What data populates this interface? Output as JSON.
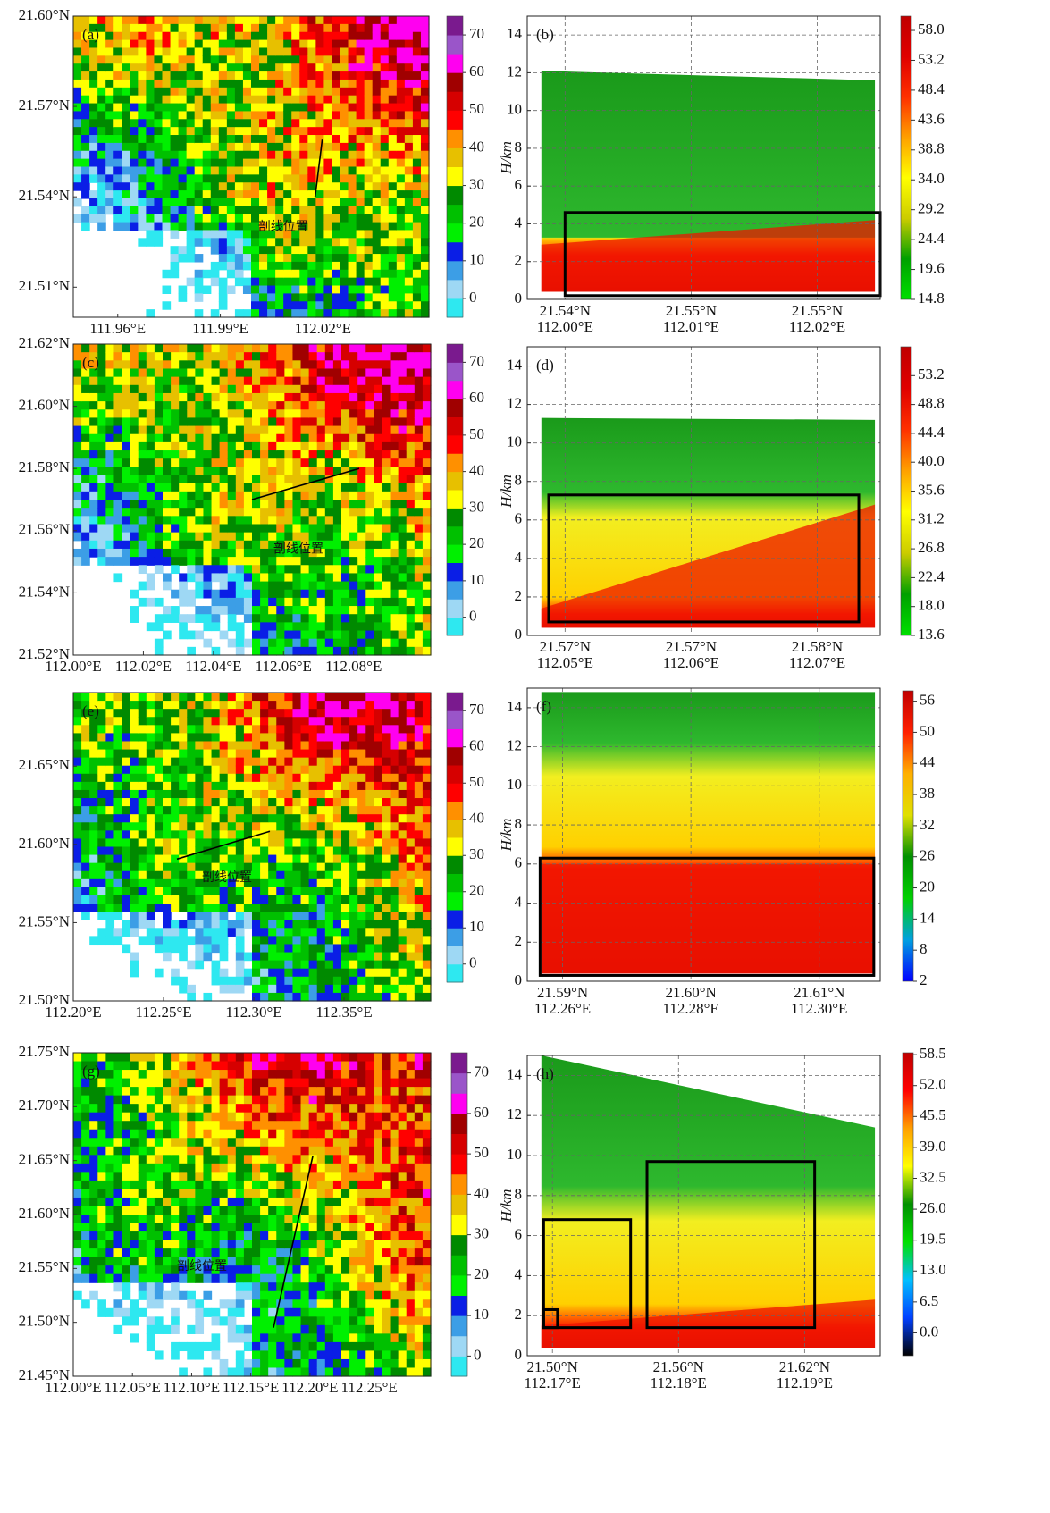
{
  "chart_data": [
    {
      "type": "radar-map",
      "label": "(a)",
      "annotation": "剖线位置",
      "xlim": [
        111.947,
        112.051
      ],
      "ylim": [
        21.5,
        21.6
      ],
      "xticks": [
        {
          "value": 111.96,
          "label": "111.96°E"
        },
        {
          "value": 111.99,
          "label": "111.99°E"
        },
        {
          "value": 112.02,
          "label": "112.02°E"
        }
      ],
      "yticks": [
        {
          "value": 21.51,
          "label": "21.51°N"
        },
        {
          "value": 21.54,
          "label": "21.54°N"
        },
        {
          "value": 21.57,
          "label": "21.57°N"
        },
        {
          "value": 21.6,
          "label": "21.60°N"
        }
      ],
      "colorbar": {
        "lim": [
          -5,
          75
        ],
        "ticks": [
          0,
          10,
          20,
          30,
          40,
          50,
          60,
          70
        ],
        "colors": [
          "#2ee8f0",
          "#9ed8f4",
          "#3c9ee6",
          "#0a1ee6",
          "#00f000",
          "#00c000",
          "#008a00",
          "#ffff00",
          "#e7c000",
          "#ff9000",
          "#ff0000",
          "#d60000",
          "#a00000",
          "#ff00f0",
          "#9a55c9",
          "#7a1a8e"
        ]
      }
    },
    {
      "type": "cross-section",
      "label": "(b)",
      "ylabel": "H/km",
      "xlim": [
        111.997,
        112.025
      ],
      "ylim": [
        0,
        15
      ],
      "grid": true,
      "xticks": [
        {
          "value": 112.0,
          "label": "112.00°E"
        },
        {
          "value": 112.01,
          "label": "112.01°E"
        },
        {
          "value": 112.02,
          "label": "112.02°E"
        }
      ],
      "xtick_lats": [
        "21.54°N",
        "21.55°N",
        "21.55°N"
      ],
      "yticks": [
        0,
        2,
        4,
        6,
        8,
        10,
        12,
        14
      ],
      "colorbar": {
        "lim": [
          14.8,
          60.3
        ],
        "ticks": [
          {
            "value": 14.8,
            "label": "14.8"
          },
          {
            "value": 19.6,
            "label": "19.6"
          },
          {
            "value": 24.4,
            "label": "24.4"
          },
          {
            "value": 29.2,
            "label": "29.2"
          },
          {
            "value": 34,
            "label": "34.0"
          },
          {
            "value": 38.8,
            "label": "38.8"
          },
          {
            "value": 43.6,
            "label": "43.6"
          },
          {
            "value": 48.4,
            "label": "48.4"
          },
          {
            "value": 53.2,
            "label": "53.2"
          },
          {
            "value": 58,
            "label": "58.0"
          }
        ],
        "colors": [
          "#00e000",
          "#00a000",
          "#cccc00",
          "#ffff00",
          "#ffa000",
          "#ff3000",
          "#e00000",
          "#c00000"
        ]
      }
    },
    {
      "type": "radar-map",
      "label": "(c)",
      "annotation": "剖线位置",
      "xlim": [
        112.0,
        112.102
      ],
      "ylim": [
        21.52,
        21.62
      ],
      "xticks": [
        {
          "value": 112.0,
          "label": "112.00°E"
        },
        {
          "value": 112.02,
          "label": "112.02°E"
        },
        {
          "value": 112.04,
          "label": "112.04°E"
        },
        {
          "value": 112.06,
          "label": "112.06°E"
        },
        {
          "value": 112.08,
          "label": "112.08°E"
        }
      ],
      "yticks": [
        {
          "value": 21.52,
          "label": "21.52°N"
        },
        {
          "value": 21.54,
          "label": "21.54°N"
        },
        {
          "value": 21.56,
          "label": "21.56°N"
        },
        {
          "value": 21.58,
          "label": "21.58°N"
        },
        {
          "value": 21.6,
          "label": "21.60°N"
        },
        {
          "value": 21.62,
          "label": "21.62°N"
        }
      ],
      "colorbar": {
        "lim": [
          -5,
          75
        ],
        "ticks": [
          0,
          10,
          20,
          30,
          40,
          50,
          60,
          70
        ],
        "colors": [
          "#2ee8f0",
          "#9ed8f4",
          "#3c9ee6",
          "#0a1ee6",
          "#00f000",
          "#00c000",
          "#008a00",
          "#ffff00",
          "#e7c000",
          "#ff9000",
          "#ff0000",
          "#d60000",
          "#a00000",
          "#ff00f0",
          "#9a55c9",
          "#7a1a8e"
        ]
      }
    },
    {
      "type": "cross-section",
      "label": "(d)",
      "ylabel": "H/km",
      "xlim": [
        112.047,
        112.075
      ],
      "ylim": [
        0,
        15
      ],
      "grid": true,
      "xticks": [
        {
          "value": 112.05,
          "label": "112.05°E"
        },
        {
          "value": 112.06,
          "label": "112.06°E"
        },
        {
          "value": 112.07,
          "label": "112.07°E"
        }
      ],
      "xtick_lats": [
        "21.57°N",
        "21.57°N",
        "21.58°N"
      ],
      "yticks": [
        0,
        2,
        4,
        6,
        8,
        10,
        12,
        14
      ],
      "colorbar": {
        "lim": [
          13.6,
          57.6
        ],
        "ticks": [
          13.6,
          {
            "value": 18,
            "label": "18.0"
          },
          22.4,
          26.8,
          31.2,
          35.6,
          {
            "value": 40,
            "label": "40.0"
          },
          44.4,
          48.8,
          53.2
        ],
        "colors": [
          "#00e000",
          "#00a000",
          "#cccc00",
          "#ffff00",
          "#ffa000",
          "#ff3000",
          "#e00000",
          "#c00000"
        ]
      }
    },
    {
      "type": "radar-map",
      "label": "(e)",
      "annotation": "剖线位置",
      "xlim": [
        112.2,
        112.398
      ],
      "ylim": [
        21.5,
        21.697
      ],
      "xticks": [
        {
          "value": 112.2,
          "label": "112.20°E"
        },
        {
          "value": 112.25,
          "label": "112.25°E"
        },
        {
          "value": 112.3,
          "label": "112.30°E"
        },
        {
          "value": 112.35,
          "label": "112.35°E"
        }
      ],
      "yticks": [
        {
          "value": 21.5,
          "label": "21.50°N"
        },
        {
          "value": 21.55,
          "label": "21.55°N"
        },
        {
          "value": 21.6,
          "label": "21.60°N"
        },
        {
          "value": 21.65,
          "label": "21.65°N"
        }
      ],
      "colorbar": {
        "lim": [
          -5,
          75
        ],
        "ticks": [
          0,
          10,
          20,
          30,
          40,
          50,
          60,
          70
        ],
        "colors": [
          "#2ee8f0",
          "#9ed8f4",
          "#3c9ee6",
          "#0a1ee6",
          "#00f000",
          "#00c000",
          "#008a00",
          "#ffff00",
          "#e7c000",
          "#ff9000",
          "#ff0000",
          "#d60000",
          "#a00000",
          "#ff00f0",
          "#9a55c9",
          "#7a1a8e"
        ]
      }
    },
    {
      "type": "cross-section",
      "label": "(f)",
      "ylabel": "H/km",
      "xlim": [
        112.2545,
        112.3095
      ],
      "ylim": [
        0,
        15
      ],
      "grid": true,
      "xticks": [
        {
          "value": 112.26,
          "label": "112.26°E"
        },
        {
          "value": 112.28,
          "label": "112.28°E"
        },
        {
          "value": 112.3,
          "label": "112.30°E"
        }
      ],
      "xtick_lats": [
        "21.59°N",
        "21.60°N",
        "21.61°N"
      ],
      "yticks": [
        0,
        2,
        4,
        6,
        8,
        10,
        12,
        14
      ],
      "colorbar": {
        "lim": [
          2,
          58
        ],
        "ticks": [
          2,
          8,
          14,
          20,
          26,
          32,
          38,
          44,
          50,
          56
        ],
        "colors": [
          "#0000ff",
          "#00a0e0",
          "#00d000",
          "#009000",
          "#e0e000",
          "#ffb000",
          "#ff2000",
          "#c00000"
        ]
      }
    },
    {
      "type": "radar-map",
      "label": "(g)",
      "annotation": "剖线位置",
      "xlim": [
        112.0,
        112.302
      ],
      "ylim": [
        21.45,
        21.75
      ],
      "xticks": [
        {
          "value": 112.0,
          "label": "112.00°E"
        },
        {
          "value": 112.05,
          "label": "112.05°E"
        },
        {
          "value": 112.1,
          "label": "112.10°E"
        },
        {
          "value": 112.15,
          "label": "112.15°E"
        },
        {
          "value": 112.2,
          "label": "112.20°E"
        },
        {
          "value": 112.25,
          "label": "112.25°E"
        }
      ],
      "yticks": [
        {
          "value": 21.45,
          "label": "21.45°N"
        },
        {
          "value": 21.5,
          "label": "21.50°N"
        },
        {
          "value": 21.55,
          "label": "21.55°N"
        },
        {
          "value": 21.6,
          "label": "21.60°N"
        },
        {
          "value": 21.65,
          "label": "21.65°N"
        },
        {
          "value": 21.7,
          "label": "21.70°N"
        },
        {
          "value": 21.75,
          "label": "21.75°N"
        }
      ],
      "colorbar": {
        "lim": [
          -5,
          75
        ],
        "ticks": [
          0,
          10,
          20,
          30,
          40,
          50,
          60,
          70
        ],
        "colors": [
          "#2ee8f0",
          "#9ed8f4",
          "#3c9ee6",
          "#0a1ee6",
          "#00f000",
          "#00c000",
          "#008a00",
          "#ffff00",
          "#e7c000",
          "#ff9000",
          "#ff0000",
          "#d60000",
          "#a00000",
          "#ff00f0",
          "#9a55c9",
          "#7a1a8e"
        ]
      }
    },
    {
      "type": "cross-section",
      "label": "(h)",
      "ylabel": "H/km",
      "xlim": [
        112.168,
        112.196
      ],
      "ylim": [
        0,
        15
      ],
      "grid": true,
      "xticks": [
        {
          "value": 112.17,
          "label": "112.17°E"
        },
        {
          "value": 112.18,
          "label": "112.18°E"
        },
        {
          "value": 112.19,
          "label": "112.19°E"
        }
      ],
      "xtick_lats": [
        "21.50°N",
        "21.56°N",
        "21.62°N"
      ],
      "yticks": [
        0,
        2,
        4,
        6,
        8,
        10,
        12,
        14
      ],
      "colorbar": {
        "lim": [
          -4.8,
          58.9
        ],
        "ticks": [
          {
            "value": 0,
            "label": "0.0"
          },
          6.5,
          {
            "value": 13,
            "label": "13.0"
          },
          19.5,
          {
            "value": 26,
            "label": "26.0"
          },
          32.5,
          {
            "value": 39,
            "label": "39.0"
          },
          45.5,
          {
            "value": 52,
            "label": "52.0"
          },
          58.5
        ],
        "colors": [
          "#000000",
          "#0040ff",
          "#00c0ff",
          "#00e000",
          "#009000",
          "#ffff00",
          "#ffa000",
          "#ff0000",
          "#c00000"
        ]
      }
    }
  ]
}
